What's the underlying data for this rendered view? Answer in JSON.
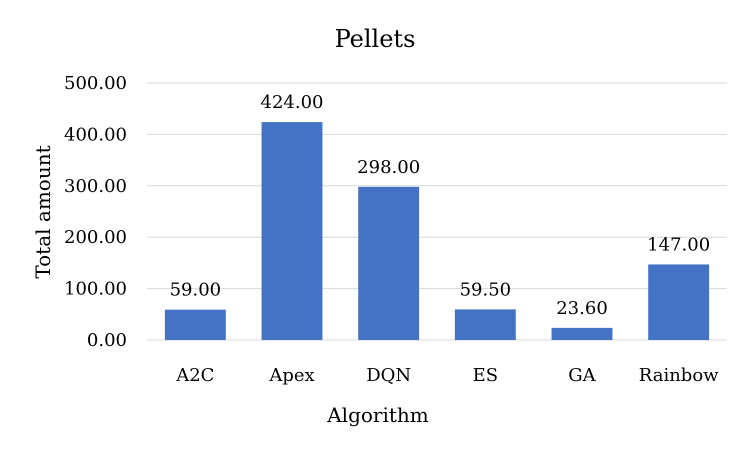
{
  "chart_data": {
    "type": "bar",
    "title": "Pellets",
    "xlabel": "Algorithm",
    "ylabel": "Total amount",
    "categories": [
      "A2C",
      "Apex",
      "DQN",
      "ES",
      "GA",
      "Rainbow"
    ],
    "values": [
      59.0,
      424.0,
      298.0,
      59.5,
      23.6,
      147.0
    ],
    "data_labels": [
      "59.00",
      "424.00",
      "298.00",
      "59.50",
      "23.60",
      "147.00"
    ],
    "ylim": [
      0,
      500
    ],
    "yticks": [
      0,
      100,
      200,
      300,
      400,
      500
    ],
    "ytick_labels": [
      "0.00",
      "100.00",
      "200.00",
      "300.00",
      "400.00",
      "500.00"
    ],
    "grid": true,
    "legend": "none",
    "bar_color": "#4472c4"
  }
}
